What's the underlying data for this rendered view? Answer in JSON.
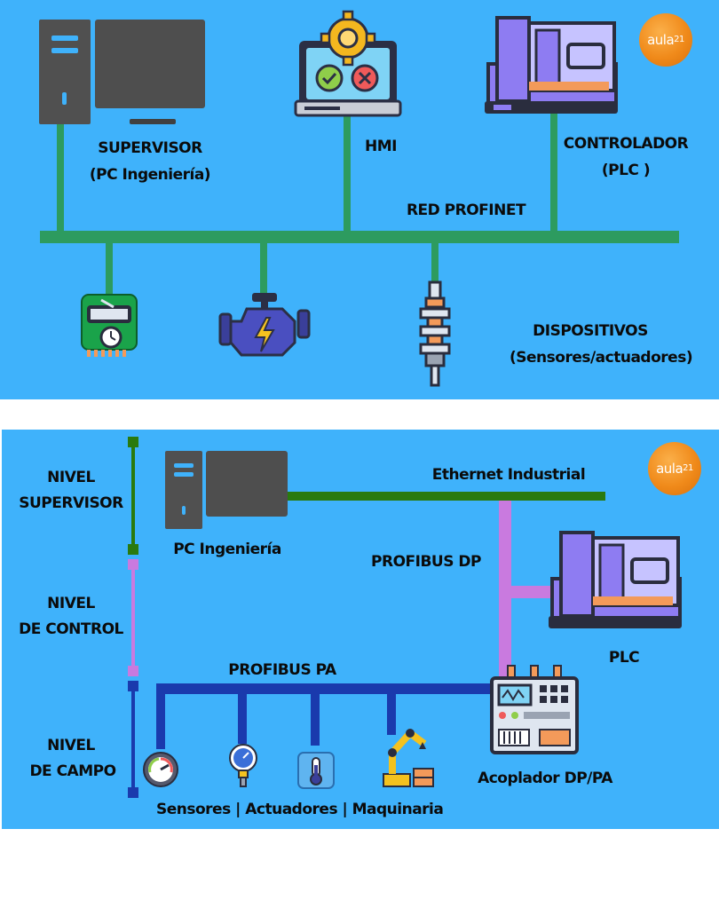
{
  "top": {
    "supervisor": {
      "line1": "SUPERVISOR",
      "line2": "(PC Ingeniería)"
    },
    "hmi": "HMI",
    "controller": {
      "line1": "CONTROLADOR",
      "line2": "(PLC )"
    },
    "network": "RED PROFINET",
    "devices": {
      "line1": "DISPOSITIVOS",
      "line2": "(Sensores/actuadores)"
    },
    "logo": {
      "word": "aula",
      "num": "21"
    }
  },
  "bottom": {
    "level_supervisor": {
      "line1": "NIVEL",
      "line2": "SUPERVISOR"
    },
    "level_control": {
      "line1": "NIVEL",
      "line2": "DE CONTROL"
    },
    "level_field": {
      "line1": "NIVEL",
      "line2": "DE CAMPO"
    },
    "pc": "PC Ingeniería",
    "ethernet": "Ethernet Industrial",
    "profibus_dp": "PROFIBUS DP",
    "plc": "PLC",
    "profibus_pa": "PROFIBUS PA",
    "coupler": "Acoplador DP/PA",
    "field_devices": "Sensores | Actuadores | Maquinaria",
    "logo": {
      "word": "aula",
      "num": "21"
    }
  },
  "colors": {
    "background": "#3fb2fb",
    "profinet": "#2d9b5f",
    "ethernet": "#2a7a0e",
    "profibus_dp": "#c97adf",
    "profibus_pa": "#1a3aad"
  }
}
